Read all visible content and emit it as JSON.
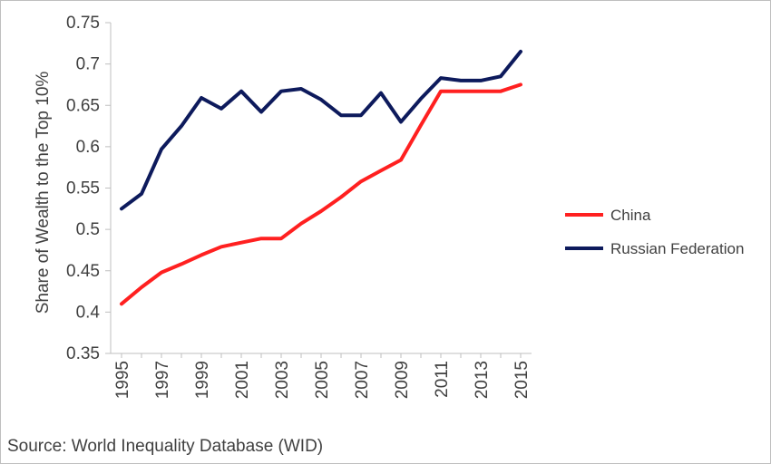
{
  "chart_data": {
    "type": "line",
    "title": "",
    "xlabel": "",
    "ylabel": "Share of Wealth to the Top 10%",
    "x": [
      1995,
      1996,
      1997,
      1998,
      1999,
      2000,
      2001,
      2002,
      2003,
      2004,
      2005,
      2006,
      2007,
      2008,
      2009,
      2010,
      2011,
      2012,
      2013,
      2014,
      2015
    ],
    "x_tick_labels": [
      "1995",
      "1997",
      "1999",
      "2001",
      "2003",
      "2005",
      "2007",
      "2009",
      "2011",
      "2013",
      "2015"
    ],
    "x_tick_values": [
      1995,
      1997,
      1999,
      2001,
      2003,
      2005,
      2007,
      2009,
      2011,
      2013,
      2015
    ],
    "y_tick_labels": [
      "0.35",
      "0.4",
      "0.45",
      "0.5",
      "0.55",
      "0.6",
      "0.65",
      "0.7",
      "0.75"
    ],
    "y_tick_values": [
      0.35,
      0.4,
      0.45,
      0.5,
      0.55,
      0.6,
      0.65,
      0.7,
      0.75
    ],
    "xlim": [
      1995,
      2015
    ],
    "ylim": [
      0.35,
      0.75
    ],
    "grid": false,
    "legend_position": "right",
    "series": [
      {
        "name": "China",
        "color": "#ff2020",
        "values": [
          0.41,
          0.43,
          0.448,
          0.458,
          0.469,
          0.479,
          0.484,
          0.489,
          0.489,
          0.507,
          0.522,
          0.539,
          0.558,
          0.571,
          0.584,
          0.626,
          0.667,
          0.667,
          0.667,
          0.667,
          0.675
        ]
      },
      {
        "name": "Russian Federation",
        "color": "#0d1a5c",
        "values": [
          0.525,
          0.543,
          0.597,
          0.625,
          0.659,
          0.646,
          0.667,
          0.642,
          0.667,
          0.67,
          0.657,
          0.638,
          0.638,
          0.665,
          0.63,
          0.658,
          0.683,
          0.68,
          0.68,
          0.685,
          0.715
        ]
      }
    ]
  },
  "source": "Source: World Inequality Database (WID)"
}
